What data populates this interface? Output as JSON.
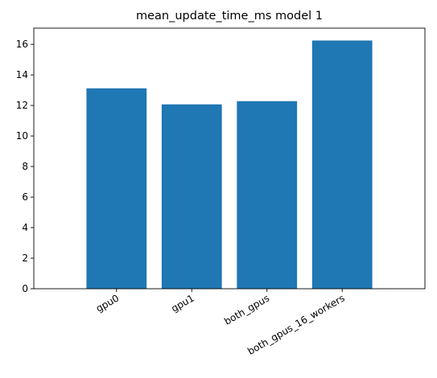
{
  "chart_data": {
    "type": "bar",
    "title": "mean_update_time_ms model 1",
    "xlabel": "",
    "ylabel": "",
    "categories": [
      "gpu0",
      "gpu1",
      "both_gpus",
      "both_gpus_16_workers"
    ],
    "values": [
      13.12,
      12.07,
      12.28,
      16.25
    ],
    "ylim": [
      0,
      17.06
    ],
    "yticks": [
      0,
      2,
      4,
      6,
      8,
      10,
      12,
      14,
      16
    ],
    "xtick_rotation_deg": 30,
    "grid": false,
    "legend": "none",
    "bar_color": "#1f77b4"
  }
}
